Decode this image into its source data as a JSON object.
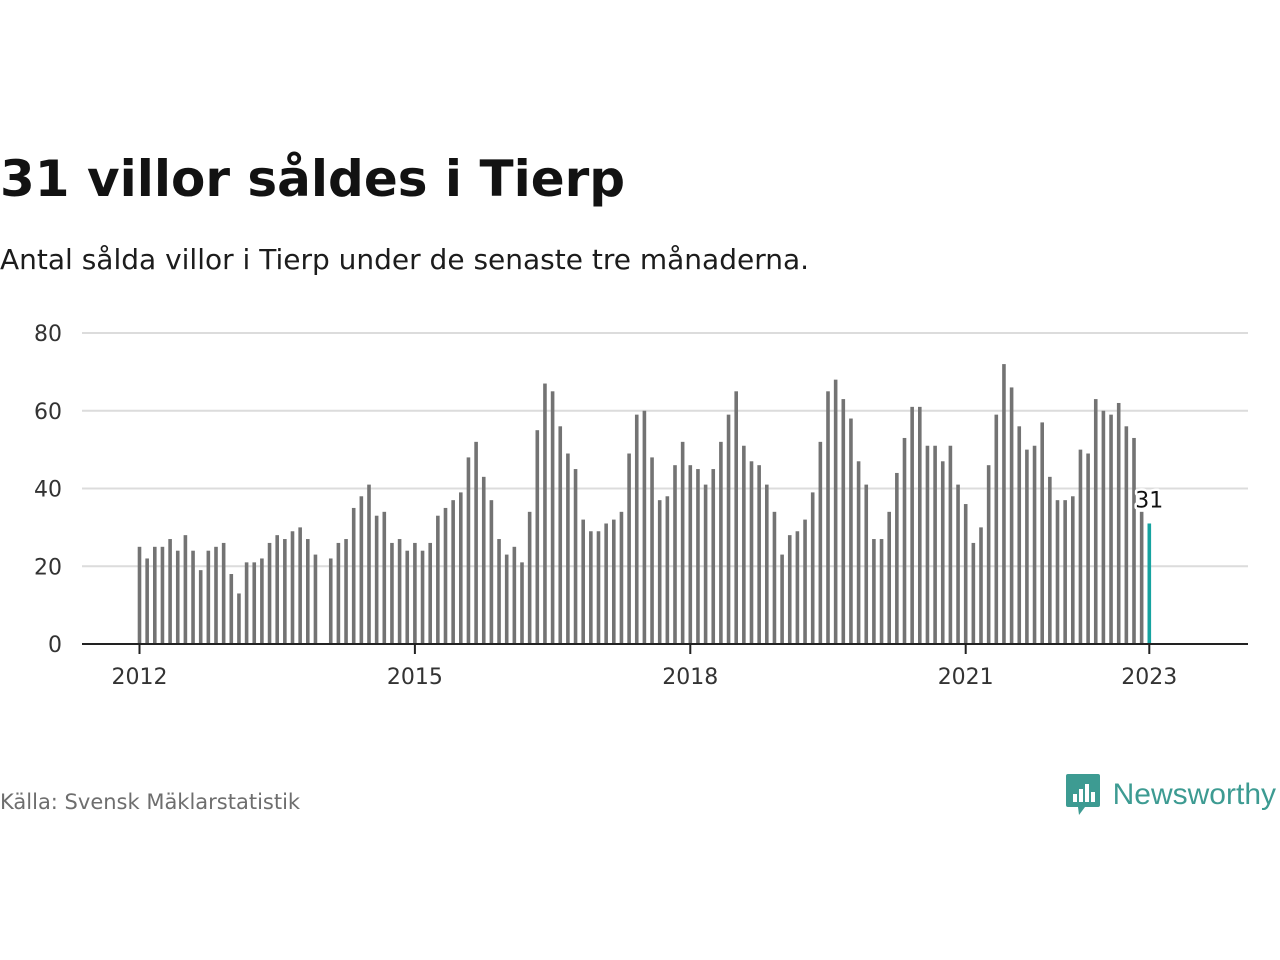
{
  "title": "31 villor såldes i Tierp",
  "subtitle": "Antal sålda villor i Tierp under de senaste tre månaderna.",
  "source": "Källa: Svensk Mäklarstatistik",
  "brand": {
    "name": "Newsworthy",
    "icon": "bar-chart-speech-bubble-icon",
    "color": "#3d9b92"
  },
  "colors": {
    "bar": "#737373",
    "highlight": "#16a3a0",
    "grid": "#dcdcdc",
    "axis": "#222222",
    "tick_text": "#333333"
  },
  "chart_data": {
    "type": "bar",
    "title": "31 villor såldes i Tierp",
    "subtitle": "Antal sålda villor i Tierp under de senaste tre månaderna.",
    "x_unit": "month",
    "x_start": "2012-01",
    "x_end": "2023-01",
    "ylim": [
      0,
      80
    ],
    "y_ticks": [
      0,
      20,
      40,
      60,
      80
    ],
    "x_ticks": [
      "2012",
      "2015",
      "2018",
      "2021",
      "2023"
    ],
    "grid": true,
    "legend": "none",
    "months": [
      "2012-01",
      "2012-02",
      "2012-03",
      "2012-04",
      "2012-05",
      "2012-06",
      "2012-07",
      "2012-08",
      "2012-09",
      "2012-10",
      "2012-11",
      "2012-12",
      "2013-01",
      "2013-02",
      "2013-03",
      "2013-04",
      "2013-05",
      "2013-06",
      "2013-07",
      "2013-08",
      "2013-09",
      "2013-10",
      "2013-11",
      "2013-12",
      "2014-01",
      "2014-02",
      "2014-03",
      "2014-04",
      "2014-05",
      "2014-06",
      "2014-07",
      "2014-08",
      "2014-09",
      "2014-10",
      "2014-11",
      "2014-12",
      "2015-01",
      "2015-02",
      "2015-03",
      "2015-04",
      "2015-05",
      "2015-06",
      "2015-07",
      "2015-08",
      "2015-09",
      "2015-10",
      "2015-11",
      "2015-12",
      "2016-01",
      "2016-02",
      "2016-03",
      "2016-04",
      "2016-05",
      "2016-06",
      "2016-07",
      "2016-08",
      "2016-09",
      "2016-10",
      "2016-11",
      "2016-12",
      "2017-01",
      "2017-02",
      "2017-03",
      "2017-04",
      "2017-05",
      "2017-06",
      "2017-07",
      "2017-08",
      "2017-09",
      "2017-10",
      "2017-11",
      "2017-12",
      "2018-01",
      "2018-02",
      "2018-03",
      "2018-04",
      "2018-05",
      "2018-06",
      "2018-07",
      "2018-08",
      "2018-09",
      "2018-10",
      "2018-11",
      "2018-12",
      "2019-01",
      "2019-02",
      "2019-03",
      "2019-04",
      "2019-05",
      "2019-06",
      "2019-07",
      "2019-08",
      "2019-09",
      "2019-10",
      "2019-11",
      "2019-12",
      "2020-01",
      "2020-02",
      "2020-03",
      "2020-04",
      "2020-05",
      "2020-06",
      "2020-07",
      "2020-08",
      "2020-09",
      "2020-10",
      "2020-11",
      "2020-12",
      "2021-01",
      "2021-02",
      "2021-03",
      "2021-04",
      "2021-05",
      "2021-06",
      "2021-07",
      "2021-08",
      "2021-09",
      "2021-10",
      "2021-11",
      "2021-12",
      "2022-01",
      "2022-02",
      "2022-03",
      "2022-04",
      "2022-05",
      "2022-06",
      "2022-07",
      "2022-08",
      "2022-09",
      "2022-10",
      "2022-11",
      "2022-12",
      "2023-01"
    ],
    "values": [
      25,
      22,
      25,
      25,
      27,
      24,
      28,
      24,
      19,
      24,
      25,
      26,
      18,
      13,
      21,
      21,
      22,
      26,
      28,
      27,
      29,
      30,
      27,
      23,
      null,
      22,
      26,
      27,
      35,
      38,
      41,
      33,
      34,
      26,
      27,
      24,
      26,
      24,
      26,
      33,
      35,
      37,
      39,
      48,
      52,
      43,
      37,
      27,
      23,
      25,
      21,
      34,
      55,
      67,
      65,
      56,
      49,
      45,
      32,
      29,
      29,
      31,
      32,
      34,
      49,
      59,
      60,
      48,
      37,
      38,
      46,
      52,
      46,
      45,
      41,
      45,
      52,
      59,
      65,
      51,
      47,
      46,
      41,
      34,
      23,
      28,
      29,
      32,
      39,
      52,
      65,
      68,
      63,
      58,
      47,
      41,
      27,
      27,
      34,
      44,
      53,
      61,
      61,
      51,
      51,
      47,
      51,
      41,
      36,
      26,
      30,
      46,
      59,
      72,
      66,
      56,
      50,
      51,
      57,
      43,
      37,
      37,
      38,
      50,
      49,
      63,
      60,
      59,
      62,
      56,
      53,
      34,
      31
    ],
    "highlight_index": 132,
    "highlight_label": "31"
  }
}
